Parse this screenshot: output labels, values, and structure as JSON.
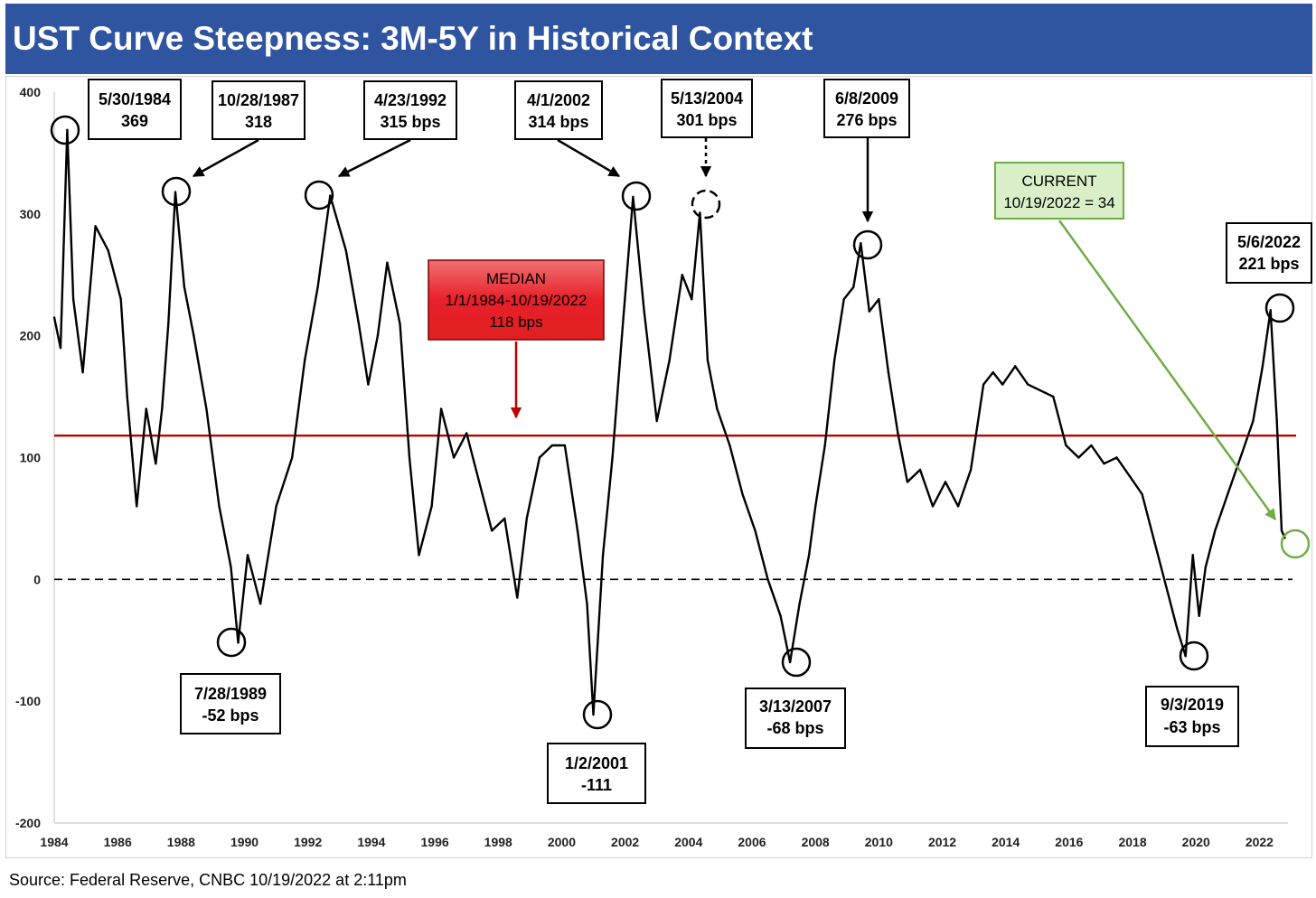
{
  "title": "UST Curve Steepness: 3M-5Y in Historical Context",
  "source": "Source: Federal Reserve, CNBC 10/19/2022 at 2:11pm",
  "colors": {
    "title_bg": "#2f54a0",
    "series": "#000000",
    "median_line": "#c00000",
    "median_box": "#e8202a",
    "current_box": "#d9efc8",
    "current_arrow": "#6fac46"
  },
  "chart_data": {
    "type": "line",
    "title": "UST Curve Steepness: 3M-5Y in Historical Context",
    "xlabel": "",
    "ylabel": "",
    "xlim": [
      1984,
      2022.9
    ],
    "ylim": [
      -200,
      400
    ],
    "y_ticks": [
      "400",
      "300",
      "200",
      "100",
      "0",
      "-100",
      "-200"
    ],
    "x_ticks": [
      "1984",
      "1986",
      "1988",
      "1990",
      "1992",
      "1994",
      "1996",
      "1998",
      "2000",
      "2002",
      "2004",
      "2006",
      "2008",
      "2010",
      "2012",
      "2014",
      "2016",
      "2018",
      "2020",
      "2022"
    ],
    "grid": false,
    "legend": "none",
    "median": 118,
    "series": [
      {
        "values_x": [
          1984.0,
          1984.2,
          1984.41,
          1984.6,
          1984.9,
          1985.3,
          1985.7,
          1986.1,
          1986.3,
          1986.6,
          1986.9,
          1987.2,
          1987.4,
          1987.6,
          1987.82,
          1988.1,
          1988.4,
          1988.8,
          1989.2,
          1989.57,
          1989.8,
          1990.1,
          1990.5,
          1991.0,
          1991.5,
          1991.9,
          1992.31,
          1992.7,
          1993.2,
          1993.6,
          1993.9,
          1994.2,
          1994.5,
          1994.9,
          1995.2,
          1995.5,
          1995.9,
          1996.2,
          1996.6,
          1997.0,
          1997.4,
          1997.8,
          1998.2,
          1998.6,
          1998.9,
          1999.3,
          1999.7,
          2000.1,
          2000.5,
          2000.8,
          2001.0,
          2001.3,
          2001.6,
          2001.9,
          2002.25,
          2002.6,
          2003.0,
          2003.4,
          2003.8,
          2004.1,
          2004.36,
          2004.6,
          2004.9,
          2005.3,
          2005.7,
          2006.1,
          2006.5,
          2006.9,
          2007.2,
          2007.5,
          2007.8,
          2008.0,
          2008.3,
          2008.6,
          2008.9,
          2009.2,
          2009.43,
          2009.7,
          2010.0,
          2010.3,
          2010.6,
          2010.9,
          2011.3,
          2011.7,
          2012.1,
          2012.5,
          2012.9,
          2013.3,
          2013.6,
          2013.9,
          2014.3,
          2014.7,
          2015.1,
          2015.5,
          2015.9,
          2016.3,
          2016.7,
          2017.1,
          2017.5,
          2017.9,
          2018.3,
          2018.7,
          2019.1,
          2019.4,
          2019.67,
          2019.9,
          2020.1,
          2020.3,
          2020.6,
          2021.0,
          2021.4,
          2021.8,
          2022.1,
          2022.35,
          2022.55,
          2022.7,
          2022.8
        ],
        "values_y": [
          215,
          190,
          369,
          230,
          170,
          290,
          270,
          230,
          150,
          60,
          140,
          95,
          140,
          210,
          318,
          240,
          200,
          140,
          60,
          10,
          -52,
          20,
          -20,
          60,
          100,
          180,
          240,
          315,
          270,
          210,
          160,
          200,
          260,
          210,
          100,
          20,
          60,
          140,
          100,
          120,
          80,
          40,
          50,
          -15,
          50,
          100,
          110,
          110,
          40,
          -20,
          -111,
          20,
          100,
          200,
          314,
          220,
          130,
          180,
          250,
          230,
          301,
          180,
          140,
          110,
          70,
          40,
          0,
          -30,
          -68,
          -20,
          20,
          60,
          110,
          180,
          230,
          240,
          276,
          220,
          230,
          170,
          120,
          80,
          90,
          60,
          80,
          60,
          90,
          160,
          170,
          160,
          175,
          160,
          155,
          150,
          110,
          100,
          110,
          95,
          100,
          85,
          70,
          30,
          -10,
          -40,
          -63,
          20,
          -30,
          10,
          40,
          70,
          100,
          130,
          175,
          221,
          130,
          40,
          34
        ]
      }
    ],
    "annotations": [
      {
        "date": "5/30/1984",
        "value": "369"
      },
      {
        "date": "10/28/1987",
        "value": "318"
      },
      {
        "date": "4/23/1992",
        "value": "315 bps"
      },
      {
        "date": "4/1/2002",
        "value": "314 bps"
      },
      {
        "date": "5/13/2004",
        "value": "301 bps"
      },
      {
        "date": "6/8/2009",
        "value": "276 bps"
      },
      {
        "date": "5/6/2022",
        "value": "221 bps"
      },
      {
        "date": "7/28/1989",
        "value": "-52 bps"
      },
      {
        "date": "1/2/2001",
        "value": "-111"
      },
      {
        "date": "3/13/2007",
        "value": "-68 bps"
      },
      {
        "date": "9/3/2019",
        "value": "-63 bps"
      }
    ],
    "median_label": {
      "line1": "MEDIAN",
      "line2": "1/1/1984-10/19/2022",
      "line3": "118 bps"
    },
    "current_label": {
      "line1": "CURRENT",
      "line2": "10/19/2022 = 34"
    }
  }
}
